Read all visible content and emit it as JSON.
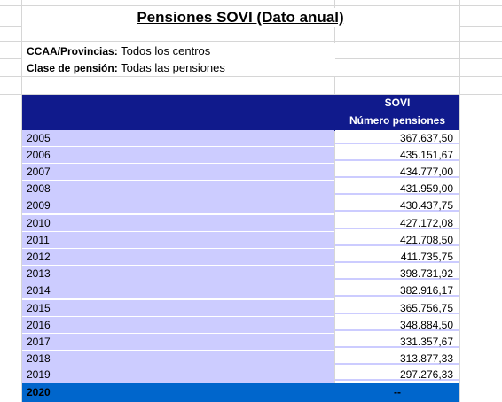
{
  "title": "Pensiones SOVI (Dato anual)",
  "filters": [
    {
      "label": "CCAA/Provincias:",
      "value": "Todos los centros"
    },
    {
      "label": "Clase de pensión:",
      "value": "Todas las pensiones"
    }
  ],
  "header": {
    "group": "SOVI",
    "column": "Número pensiones"
  },
  "rows": [
    {
      "year": "2005",
      "value": "367.637,50"
    },
    {
      "year": "2006",
      "value": "435.151,67"
    },
    {
      "year": "2007",
      "value": "434.777,00"
    },
    {
      "year": "2008",
      "value": "431.959,00"
    },
    {
      "year": "2009",
      "value": "430.437,75"
    },
    {
      "year": "2010",
      "value": "427.172,08"
    },
    {
      "year": "2011",
      "value": "421.708,50"
    },
    {
      "year": "2012",
      "value": "411.735,75"
    },
    {
      "year": "2013",
      "value": "398.731,92"
    },
    {
      "year": "2014",
      "value": "382.916,17"
    },
    {
      "year": "2015",
      "value": "365.756,75"
    },
    {
      "year": "2016",
      "value": "348.884,50"
    },
    {
      "year": "2017",
      "value": "331.357,67"
    },
    {
      "year": "2018",
      "value": "313.877,33"
    },
    {
      "year": "2019",
      "value": "297.276,33"
    }
  ],
  "last_row": {
    "year": "2020",
    "value": "--"
  }
}
